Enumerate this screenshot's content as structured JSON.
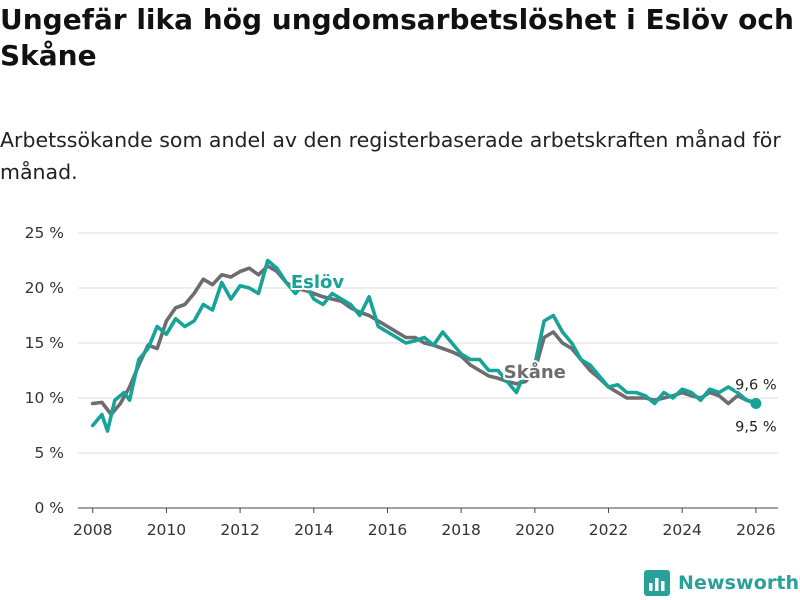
{
  "title": "Ungefär lika hög ungdomsarbetslöshet i Eslöv och Skåne",
  "subtitle": "Arbetssökande som andel av den registerbaserade arbetskraften månad för månad.",
  "brand": {
    "name": "Newsworthy",
    "icon": "bar-chart-logo-icon"
  },
  "colors": {
    "eslov": "#17a398",
    "skane": "#6d6d71",
    "grid": "#dcdcdc",
    "axis": "#444444"
  },
  "chart_data": {
    "type": "line",
    "title": "Ungefär lika hög ungdomsarbetslöshet i Eslöv och Skåne",
    "xlabel": "",
    "ylabel": "",
    "xlim": [
      2007.6,
      2026.6
    ],
    "ylim": [
      0,
      25
    ],
    "x_ticks": [
      2008,
      2010,
      2012,
      2014,
      2016,
      2018,
      2020,
      2022,
      2024,
      2026
    ],
    "y_ticks": [
      0,
      5,
      10,
      15,
      20,
      25
    ],
    "y_tick_labels": [
      "0 %",
      "5 %",
      "10 %",
      "15 %",
      "20 %",
      "25 %"
    ],
    "grid": true,
    "series": [
      {
        "name": "Skåne",
        "label": "Skåne",
        "end_label": "9,5 %",
        "color": "#6d6d71",
        "points": [
          [
            2008.0,
            9.5
          ],
          [
            2008.25,
            9.6
          ],
          [
            2008.5,
            8.5
          ],
          [
            2008.75,
            9.5
          ],
          [
            2009.0,
            11.0
          ],
          [
            2009.25,
            13.0
          ],
          [
            2009.5,
            14.8
          ],
          [
            2009.75,
            14.5
          ],
          [
            2010.0,
            17.0
          ],
          [
            2010.25,
            18.2
          ],
          [
            2010.5,
            18.5
          ],
          [
            2010.75,
            19.5
          ],
          [
            2011.0,
            20.8
          ],
          [
            2011.25,
            20.3
          ],
          [
            2011.5,
            21.2
          ],
          [
            2011.75,
            21.0
          ],
          [
            2012.0,
            21.5
          ],
          [
            2012.25,
            21.8
          ],
          [
            2012.5,
            21.2
          ],
          [
            2012.75,
            22.0
          ],
          [
            2013.0,
            21.5
          ],
          [
            2013.25,
            20.5
          ],
          [
            2013.5,
            20.0
          ],
          [
            2013.75,
            19.8
          ],
          [
            2014.0,
            19.5
          ],
          [
            2014.25,
            19.2
          ],
          [
            2014.5,
            19.0
          ],
          [
            2014.75,
            18.8
          ],
          [
            2015.0,
            18.2
          ],
          [
            2015.25,
            17.8
          ],
          [
            2015.5,
            17.5
          ],
          [
            2015.75,
            17.0
          ],
          [
            2016.0,
            16.5
          ],
          [
            2016.25,
            16.0
          ],
          [
            2016.5,
            15.5
          ],
          [
            2016.75,
            15.5
          ],
          [
            2017.0,
            15.0
          ],
          [
            2017.25,
            14.8
          ],
          [
            2017.5,
            14.5
          ],
          [
            2017.75,
            14.2
          ],
          [
            2018.0,
            13.8
          ],
          [
            2018.25,
            13.0
          ],
          [
            2018.5,
            12.5
          ],
          [
            2018.75,
            12.0
          ],
          [
            2019.0,
            11.8
          ],
          [
            2019.25,
            11.5
          ],
          [
            2019.5,
            11.3
          ],
          [
            2019.75,
            11.5
          ],
          [
            2020.0,
            12.5
          ],
          [
            2020.25,
            15.5
          ],
          [
            2020.5,
            16.0
          ],
          [
            2020.75,
            15.0
          ],
          [
            2021.0,
            14.5
          ],
          [
            2021.25,
            13.5
          ],
          [
            2021.5,
            12.5
          ],
          [
            2021.75,
            11.8
          ],
          [
            2022.0,
            11.0
          ],
          [
            2022.25,
            10.5
          ],
          [
            2022.5,
            10.0
          ],
          [
            2022.75,
            10.0
          ],
          [
            2023.0,
            10.0
          ],
          [
            2023.25,
            9.8
          ],
          [
            2023.5,
            10.0
          ],
          [
            2023.75,
            10.2
          ],
          [
            2024.0,
            10.5
          ],
          [
            2024.25,
            10.2
          ],
          [
            2024.5,
            10.0
          ],
          [
            2024.75,
            10.5
          ],
          [
            2025.0,
            10.2
          ],
          [
            2025.25,
            9.5
          ],
          [
            2025.5,
            10.2
          ],
          [
            2025.75,
            9.8
          ],
          [
            2026.0,
            9.5
          ]
        ]
      },
      {
        "name": "Eslöv",
        "label": "Eslöv",
        "end_label": "9,6 %",
        "color": "#17a398",
        "points": [
          [
            2008.0,
            7.5
          ],
          [
            2008.25,
            8.5
          ],
          [
            2008.4,
            7.0
          ],
          [
            2008.6,
            9.8
          ],
          [
            2008.85,
            10.5
          ],
          [
            2009.0,
            9.8
          ],
          [
            2009.25,
            13.5
          ],
          [
            2009.5,
            14.5
          ],
          [
            2009.75,
            16.5
          ],
          [
            2010.0,
            15.8
          ],
          [
            2010.25,
            17.2
          ],
          [
            2010.5,
            16.5
          ],
          [
            2010.75,
            17.0
          ],
          [
            2011.0,
            18.5
          ],
          [
            2011.25,
            18.0
          ],
          [
            2011.5,
            20.5
          ],
          [
            2011.75,
            19.0
          ],
          [
            2012.0,
            20.2
          ],
          [
            2012.25,
            20.0
          ],
          [
            2012.5,
            19.5
          ],
          [
            2012.75,
            22.5
          ],
          [
            2013.0,
            21.8
          ],
          [
            2013.25,
            20.5
          ],
          [
            2013.5,
            19.5
          ],
          [
            2013.75,
            20.5
          ],
          [
            2014.0,
            19.0
          ],
          [
            2014.25,
            18.5
          ],
          [
            2014.5,
            19.5
          ],
          [
            2014.75,
            19.0
          ],
          [
            2015.0,
            18.5
          ],
          [
            2015.25,
            17.5
          ],
          [
            2015.5,
            19.2
          ],
          [
            2015.75,
            16.5
          ],
          [
            2016.0,
            16.0
          ],
          [
            2016.25,
            15.5
          ],
          [
            2016.5,
            15.0
          ],
          [
            2016.75,
            15.2
          ],
          [
            2017.0,
            15.5
          ],
          [
            2017.25,
            14.8
          ],
          [
            2017.5,
            16.0
          ],
          [
            2017.75,
            15.0
          ],
          [
            2018.0,
            14.0
          ],
          [
            2018.25,
            13.5
          ],
          [
            2018.5,
            13.5
          ],
          [
            2018.75,
            12.5
          ],
          [
            2019.0,
            12.5
          ],
          [
            2019.25,
            11.5
          ],
          [
            2019.5,
            10.5
          ],
          [
            2019.75,
            12.5
          ],
          [
            2020.0,
            13.0
          ],
          [
            2020.25,
            17.0
          ],
          [
            2020.5,
            17.5
          ],
          [
            2020.75,
            16.0
          ],
          [
            2021.0,
            15.0
          ],
          [
            2021.25,
            13.5
          ],
          [
            2021.5,
            13.0
          ],
          [
            2021.75,
            12.0
          ],
          [
            2022.0,
            11.0
          ],
          [
            2022.25,
            11.2
          ],
          [
            2022.5,
            10.5
          ],
          [
            2022.75,
            10.5
          ],
          [
            2023.0,
            10.2
          ],
          [
            2023.25,
            9.5
          ],
          [
            2023.5,
            10.5
          ],
          [
            2023.75,
            10.0
          ],
          [
            2024.0,
            10.8
          ],
          [
            2024.25,
            10.5
          ],
          [
            2024.5,
            9.8
          ],
          [
            2024.75,
            10.8
          ],
          [
            2025.0,
            10.5
          ],
          [
            2025.25,
            11.0
          ],
          [
            2025.5,
            10.5
          ],
          [
            2025.75,
            9.8
          ],
          [
            2026.0,
            9.6
          ]
        ]
      }
    ]
  }
}
